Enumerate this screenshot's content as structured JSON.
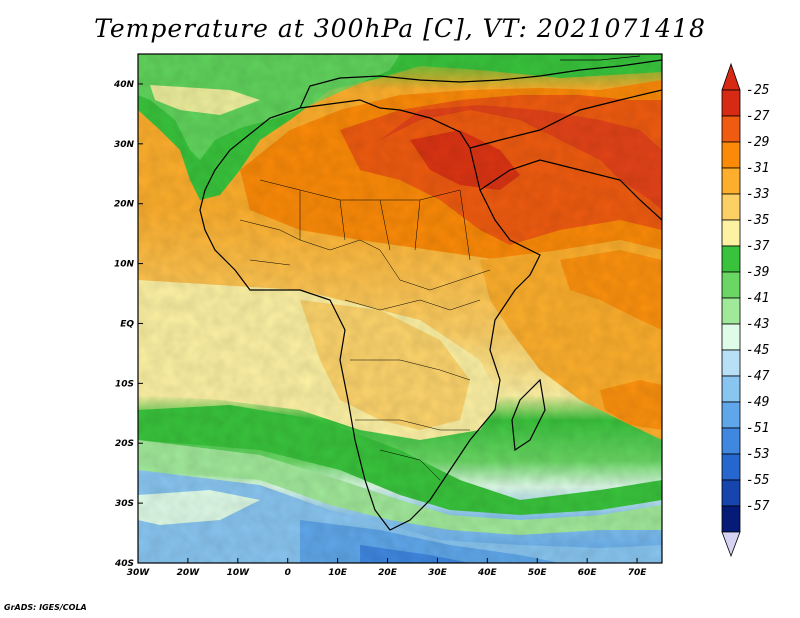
{
  "title": "Temperature at 300hPa [C], VT: 2021071418",
  "credit": "GrADS: IGES/COLA",
  "map": {
    "lon_labels": [
      "30W",
      "20W",
      "10W",
      "0",
      "10E",
      "20E",
      "30E",
      "40E",
      "50E",
      "60E",
      "70E"
    ],
    "lat_labels": [
      "40N",
      "30N",
      "20N",
      "10N",
      "EQ",
      "10S",
      "20S",
      "30S",
      "40S"
    ],
    "lon_range": [
      -30,
      75
    ],
    "lat_range": [
      -40,
      45
    ]
  },
  "colorbar": {
    "labels": [
      "-25",
      "-27",
      "-29",
      "-31",
      "-33",
      "-35",
      "-37",
      "-39",
      "-41",
      "-43",
      "-45",
      "-47",
      "-49",
      "-51",
      "-53",
      "-55",
      "-57"
    ],
    "colors": [
      "#d62a14",
      "#ef5b10",
      "#fb8a08",
      "#fcae2c",
      "#fdd066",
      "#fdf1a3",
      "#39c33c",
      "#6ad764",
      "#a1e99a",
      "#dffce8",
      "#b7dff5",
      "#88c5f0",
      "#5fa7ea",
      "#3f87df",
      "#2566cf",
      "#1545ad",
      "#061a78",
      "#d6d2f4"
    ],
    "top_arrow_color": "#d62a14",
    "bottom_arrow_color": "#d6d2f4"
  }
}
